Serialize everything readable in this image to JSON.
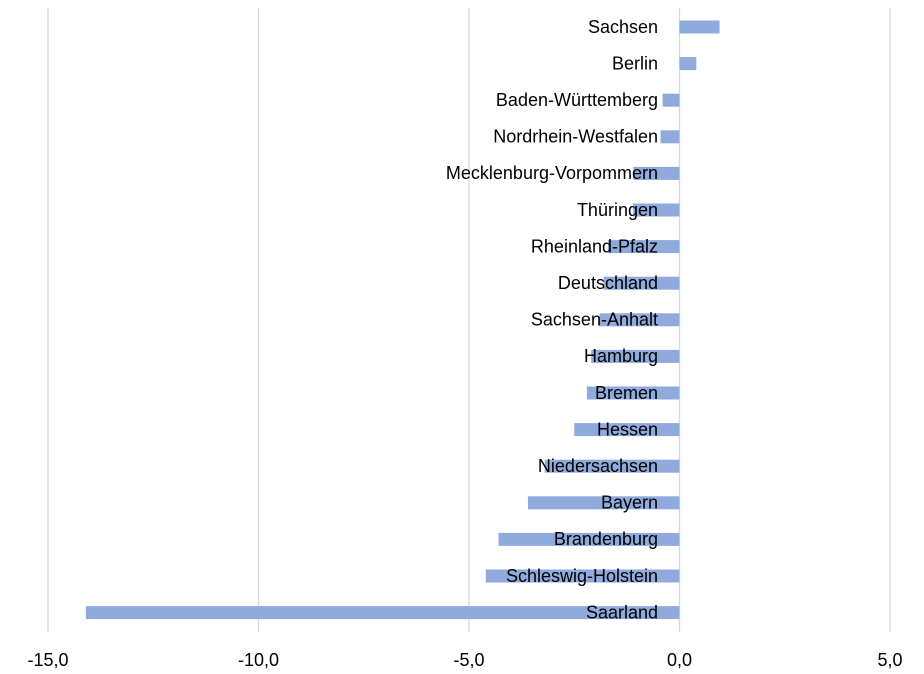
{
  "chart_data": {
    "type": "barh",
    "categories": [
      "Sachsen",
      "Berlin",
      "Baden-Württemberg",
      "Nordrhein-Westfalen",
      "Mecklenburg-Vorpommern",
      "Thüringen",
      "Rheinland-Pfalz",
      "Deutschland",
      "Sachsen-Anhalt",
      "Hamburg",
      "Bremen",
      "Hessen",
      "Niedersachsen",
      "Bayern",
      "Brandenburg",
      "Schleswig-Holstein",
      "Saarland"
    ],
    "values": [
      0.95,
      0.4,
      -0.4,
      -0.45,
      -1.1,
      -1.1,
      -1.7,
      -1.8,
      -1.9,
      -2.1,
      -2.2,
      -2.5,
      -3.2,
      -3.6,
      -4.3,
      -4.6,
      -14.1
    ],
    "color": "#8faadc",
    "xlim": [
      -15,
      5
    ],
    "xticks": [
      {
        "value": -15,
        "label": "-15,0"
      },
      {
        "value": -10,
        "label": "-10,0"
      },
      {
        "value": -5,
        "label": "-5,0"
      },
      {
        "value": 0,
        "label": "0,0"
      },
      {
        "value": 5,
        "label": "5,0"
      }
    ],
    "grid": true
  }
}
